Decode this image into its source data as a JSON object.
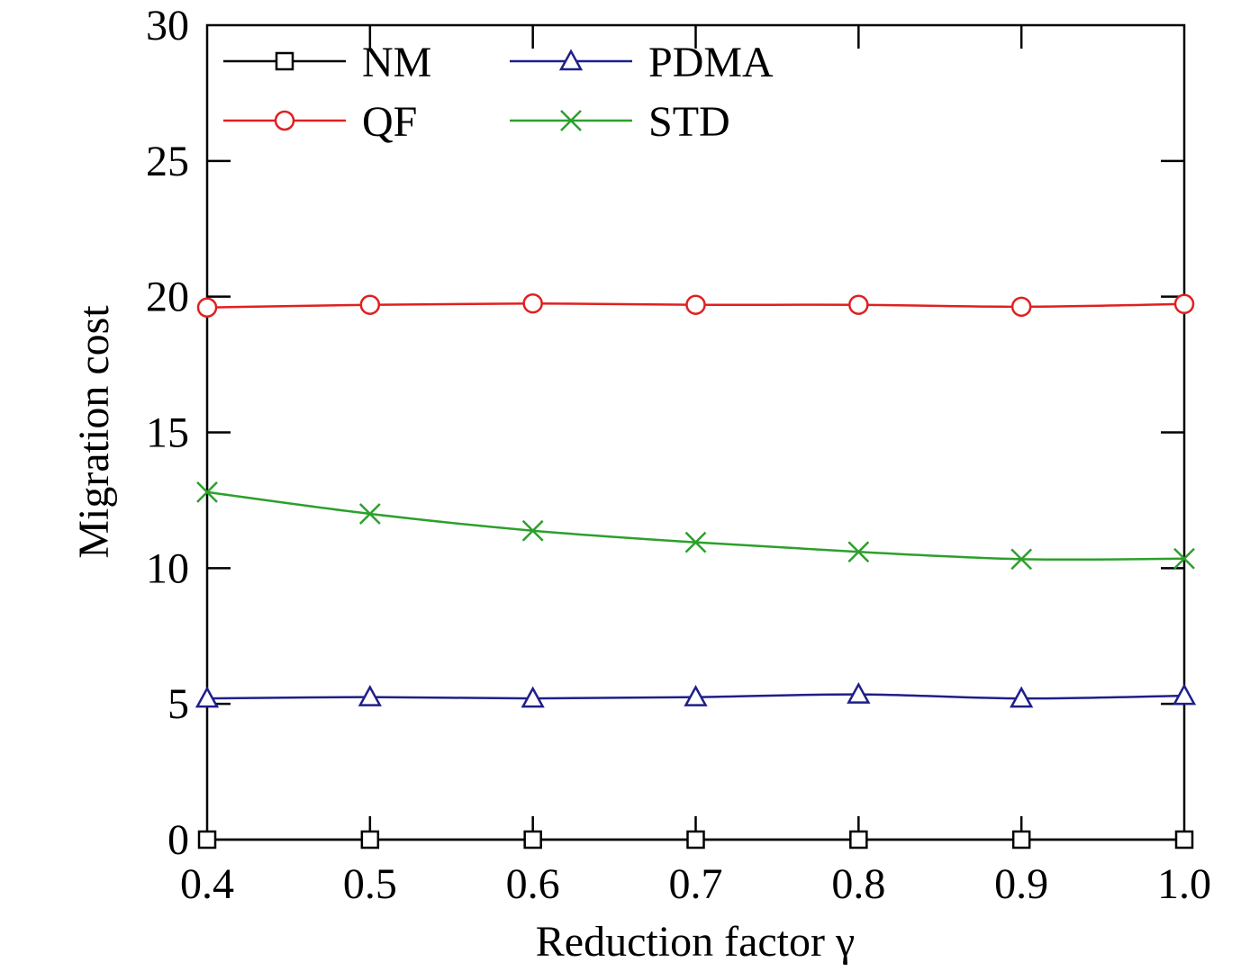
{
  "chart_data": {
    "type": "line",
    "x": [
      0.4,
      0.5,
      0.6,
      0.7,
      0.8,
      0.9,
      1.0
    ],
    "x_tick_labels": [
      "0.4",
      "0.5",
      "0.6",
      "0.7",
      "0.8",
      "0.9",
      "1.0"
    ],
    "y_ticks": [
      0,
      5,
      10,
      15,
      20,
      25,
      30
    ],
    "y_tick_labels": [
      "0",
      "5",
      "10",
      "15",
      "20",
      "25",
      "30"
    ],
    "xlim": [
      0.4,
      1.0
    ],
    "ylim": [
      0,
      30
    ],
    "xlabel": "Reduction factor γ",
    "ylabel": "Migration cost",
    "grid": false,
    "legend_position": "top-left",
    "series": [
      {
        "name": "NM",
        "color": "#000000",
        "marker": "square",
        "values": [
          0,
          0,
          0,
          0,
          0,
          0,
          0
        ]
      },
      {
        "name": "PDMA",
        "color": "#1f1f8a",
        "marker": "triangle",
        "values": [
          5.2,
          5.25,
          5.2,
          5.25,
          5.35,
          5.2,
          5.3
        ]
      },
      {
        "name": "QF",
        "color": "#e02020",
        "marker": "circle",
        "values": [
          19.6,
          19.7,
          19.75,
          19.7,
          19.7,
          19.63,
          19.73
        ]
      },
      {
        "name": "STD",
        "color": "#2ca02c",
        "marker": "x",
        "values": [
          12.8,
          12.0,
          11.38,
          10.95,
          10.6,
          10.33,
          10.35
        ]
      }
    ]
  }
}
